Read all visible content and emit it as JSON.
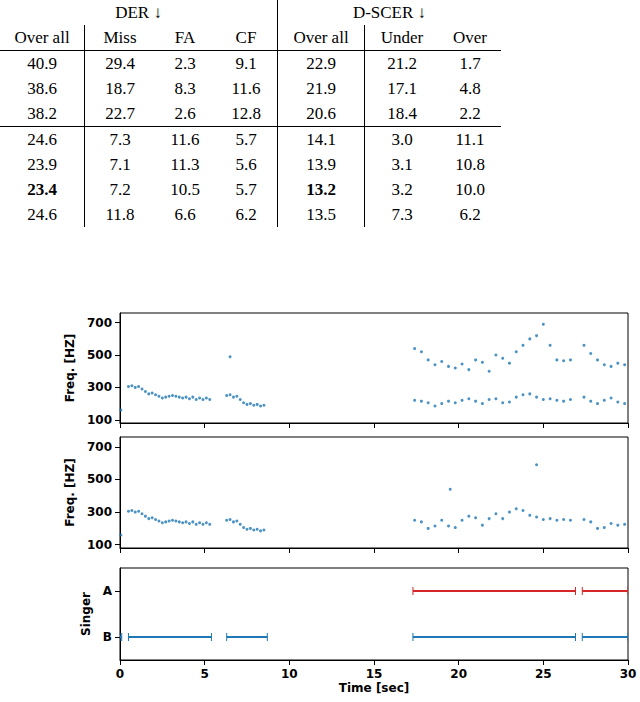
{
  "table": {
    "header": [
      {
        "text": "DER ↓",
        "span": 4
      },
      {
        "text": "D-SCER ↓",
        "span": 3
      }
    ],
    "columns": [
      "Over all",
      "Miss",
      "FA",
      "CF",
      "Over all",
      "Under",
      "Over"
    ],
    "groups": [
      [
        [
          "40.9",
          "29.4",
          "2.3",
          "9.1",
          "22.9",
          "21.2",
          "1.7"
        ],
        [
          "38.6",
          "18.7",
          "8.3",
          "11.6",
          "21.9",
          "17.1",
          "4.8"
        ],
        [
          "38.2",
          "22.7",
          "2.6",
          "12.8",
          "20.6",
          "18.4",
          "2.2"
        ]
      ],
      [
        [
          "24.6",
          "7.3",
          "11.6",
          "5.7",
          "14.1",
          "3.0",
          "11.1"
        ],
        [
          "23.9",
          "7.1",
          "11.3",
          "5.6",
          "13.9",
          "3.1",
          "10.8"
        ],
        [
          {
            "text": "23.4",
            "bold": true
          },
          "7.2",
          "10.5",
          "5.7",
          {
            "text": "13.2",
            "bold": true
          },
          "3.2",
          "10.0"
        ],
        [
          "24.6",
          "11.8",
          "6.6",
          "6.2",
          "13.5",
          "7.3",
          "6.2"
        ]
      ]
    ]
  },
  "chart_data": [
    {
      "type": "scatter",
      "ylabel": "Freq. [HZ]",
      "xlim": [
        0,
        30
      ],
      "xticks": [
        0,
        5,
        10,
        15,
        20,
        25,
        30
      ],
      "ylim": [
        80,
        760
      ],
      "yticks": [
        100,
        300,
        500,
        700
      ],
      "tick_labels": "y",
      "series": [
        {
          "color": "#1f77b4",
          "marker": ".",
          "x": [
            0.05,
            0.5,
            0.7,
            0.9,
            1.1,
            1.3,
            1.5,
            1.7,
            1.9,
            2.1,
            2.3,
            2.5,
            2.7,
            2.9,
            3.1,
            3.3,
            3.5,
            3.7,
            3.9,
            4.1,
            4.3,
            4.5,
            4.7,
            4.9,
            5.1,
            5.3,
            6.3,
            6.5,
            6.7,
            6.9,
            7.1,
            7.3,
            7.5,
            7.7,
            7.9,
            8.1,
            8.3,
            8.5,
            6.5,
            17.4,
            17.8,
            18.2,
            18.6,
            19.0,
            19.4,
            19.8,
            20.2,
            20.6,
            21.0,
            21.4,
            21.8,
            22.2,
            22.6,
            23.0,
            23.4,
            23.8,
            24.2,
            24.6,
            25.0,
            25.4,
            25.8,
            26.2,
            26.6,
            27.4,
            27.8,
            28.2,
            28.6,
            29.0,
            29.4,
            29.8,
            17.4,
            17.8,
            18.2,
            18.6,
            19.0,
            19.4,
            19.8,
            20.2,
            20.6,
            21.0,
            21.4,
            21.8,
            22.2,
            22.6,
            23.0,
            23.4,
            23.8,
            24.2,
            24.6,
            25.0,
            25.4,
            25.8,
            26.2,
            26.6,
            27.4,
            27.8,
            28.2,
            28.6,
            29.0,
            29.4,
            29.8
          ],
          "values": [
            160,
            305,
            310,
            300,
            305,
            290,
            275,
            260,
            265,
            255,
            245,
            235,
            240,
            245,
            250,
            245,
            240,
            235,
            240,
            230,
            240,
            225,
            235,
            225,
            235,
            225,
            250,
            255,
            240,
            245,
            225,
            205,
            195,
            200,
            190,
            195,
            185,
            190,
            490,
            220,
            215,
            205,
            185,
            200,
            215,
            205,
            220,
            230,
            215,
            200,
            225,
            230,
            205,
            210,
            240,
            255,
            260,
            240,
            225,
            230,
            220,
            215,
            225,
            240,
            215,
            200,
            220,
            235,
            210,
            200,
            540,
            520,
            470,
            440,
            460,
            430,
            420,
            445,
            410,
            470,
            455,
            400,
            500,
            480,
            450,
            520,
            560,
            600,
            620,
            690,
            560,
            470,
            465,
            470,
            560,
            510,
            470,
            440,
            430,
            450,
            440
          ]
        }
      ]
    },
    {
      "type": "scatter",
      "ylabel": "Freq. [HZ]",
      "xlim": [
        0,
        30
      ],
      "xticks": [
        0,
        5,
        10,
        15,
        20,
        25,
        30
      ],
      "ylim": [
        80,
        760
      ],
      "yticks": [
        100,
        300,
        500,
        700
      ],
      "tick_labels": "y",
      "series": [
        {
          "color": "#1f77b4",
          "marker": ".",
          "x": [
            0.05,
            0.5,
            0.7,
            0.9,
            1.1,
            1.3,
            1.5,
            1.7,
            1.9,
            2.1,
            2.3,
            2.5,
            2.7,
            2.9,
            3.1,
            3.3,
            3.5,
            3.7,
            3.9,
            4.1,
            4.3,
            4.5,
            4.7,
            4.9,
            5.1,
            5.3,
            6.3,
            6.5,
            6.7,
            6.9,
            7.1,
            7.3,
            7.5,
            7.7,
            7.9,
            8.1,
            8.3,
            8.5,
            17.4,
            17.8,
            18.2,
            18.6,
            19.0,
            19.4,
            19.8,
            20.2,
            20.6,
            21.0,
            21.4,
            21.8,
            22.2,
            22.6,
            23.0,
            23.4,
            23.8,
            24.2,
            24.6,
            25.0,
            25.4,
            25.8,
            26.2,
            26.6,
            27.4,
            27.8,
            28.2,
            28.6,
            29.0,
            29.4,
            29.8,
            19.5,
            24.6
          ],
          "values": [
            160,
            305,
            310,
            300,
            305,
            290,
            275,
            260,
            265,
            255,
            245,
            235,
            240,
            245,
            250,
            245,
            240,
            235,
            240,
            230,
            240,
            225,
            235,
            225,
            235,
            225,
            250,
            255,
            240,
            245,
            225,
            205,
            195,
            200,
            190,
            195,
            185,
            190,
            250,
            240,
            200,
            215,
            250,
            215,
            205,
            250,
            275,
            265,
            220,
            260,
            290,
            260,
            300,
            320,
            310,
            280,
            270,
            255,
            260,
            250,
            255,
            250,
            255,
            240,
            200,
            205,
            230,
            220,
            225,
            440,
            590
          ]
        }
      ]
    },
    {
      "type": "timeline",
      "xlabel": "Time [sec]",
      "ylabel": "Singer",
      "categories": [
        "A",
        "B"
      ],
      "xlim": [
        0,
        30
      ],
      "xticks": [
        0,
        5,
        10,
        15,
        20,
        25,
        30
      ],
      "series": [
        {
          "category": "A",
          "color": "#d62728",
          "marker": "|",
          "segments": [
            [
              17.3,
              26.9
            ],
            [
              27.3,
              30
            ]
          ]
        },
        {
          "category": "B",
          "color": "#1f77b4",
          "marker": "|",
          "segments": [
            [
              0,
              0.1
            ],
            [
              0.5,
              5.4
            ],
            [
              6.3,
              8.7
            ],
            [
              17.3,
              26.9
            ],
            [
              27.3,
              30
            ]
          ]
        }
      ]
    }
  ]
}
